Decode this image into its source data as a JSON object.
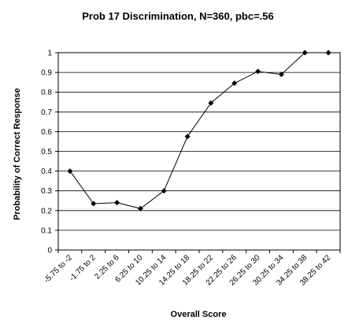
{
  "chart_data": {
    "type": "line",
    "title": "Prob 17 Discrimination, N=360, pbc=.56",
    "xlabel": "Overall Score",
    "ylabel": "Probability of Correct Response",
    "ylim": [
      0,
      1
    ],
    "yticks": [
      "0",
      "0.1",
      "0.2",
      "0.3",
      "0.4",
      "0.5",
      "0.6",
      "0.7",
      "0.8",
      "0.9",
      "1"
    ],
    "grid": true,
    "categories": [
      "-5.75 to -2",
      "-1.75 to 2",
      "2.25 to 6",
      "6.25 to 10",
      "10.25 to 14",
      "14.25 to 18",
      "18.25 to 22",
      "22.25 to 26",
      "26.25 to 30",
      "30.25 to 34",
      "34.25 to 38",
      "38.25 to 42"
    ],
    "values": [
      0.4,
      0.235,
      0.24,
      0.21,
      0.3,
      0.575,
      0.745,
      0.845,
      0.905,
      0.89,
      1.0,
      1.0
    ]
  }
}
